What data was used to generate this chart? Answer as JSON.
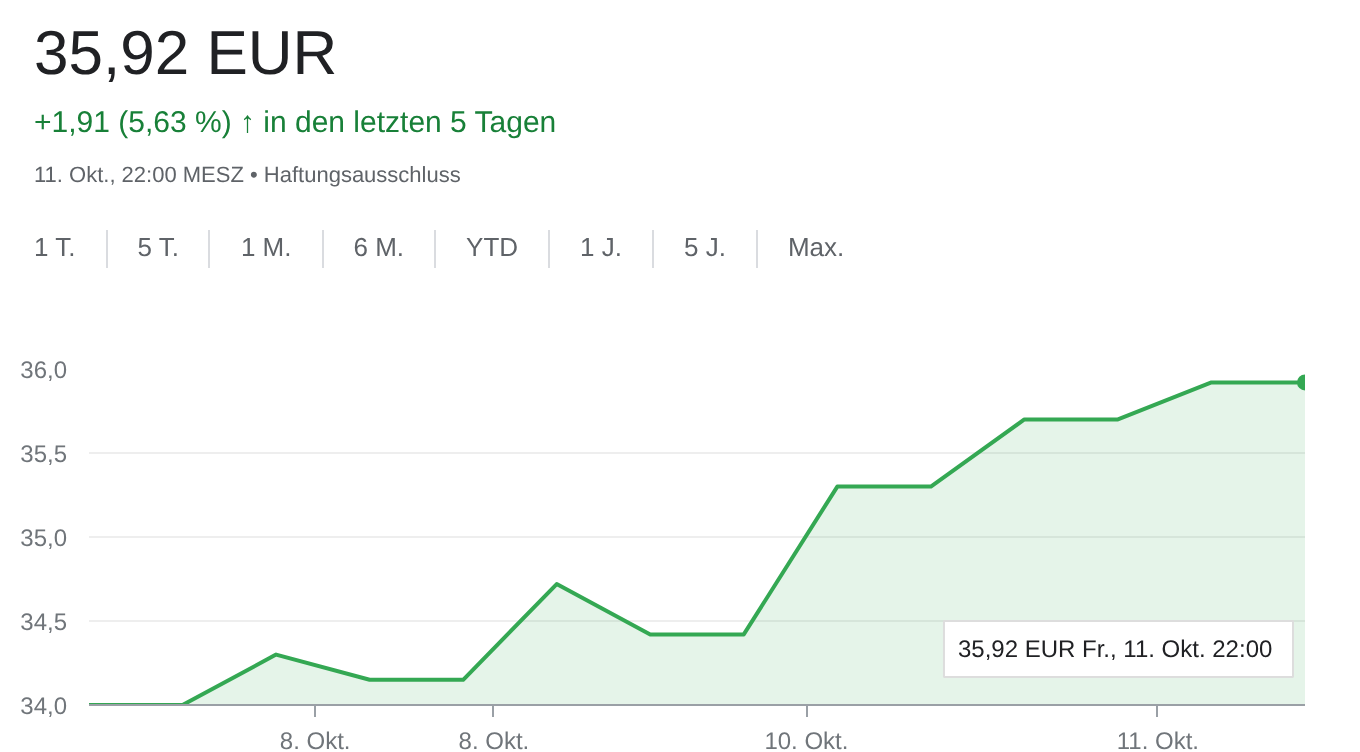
{
  "chart_data": {
    "type": "area",
    "title": "35,92 EUR",
    "subtitle": "+1,91 (5,63 %) ↑ in den letzten 5 Tagen",
    "annotations": [
      "11. Okt., 22:00 MESZ • Haftungsausschluss",
      "1 T.",
      "5 T.",
      "1 M.",
      "6 M.",
      "YTD",
      "1 J.",
      "5 J.",
      "Max.",
      "8. Okt.",
      "8. Okt.",
      "10. Okt.",
      "11. Okt.",
      "35,92 EUR  Fr., 11. Okt. 22:00"
    ],
    "categories": [
      null,
      null,
      null,
      null,
      null,
      null,
      null,
      null,
      null,
      null,
      null,
      null,
      null,
      null
    ],
    "series": [
      {
        "color": "#34a853",
        "values": [
          34.0,
          34.0,
          34.3,
          34.15,
          34.15,
          34.72,
          34.42,
          34.42,
          35.3,
          35.3,
          35.7,
          35.7,
          35.92,
          35.92
        ]
      }
    ],
    "ylim": [
      34.0,
      36.0
    ],
    "yticks": [
      {
        "value": 34.0,
        "label": "34,0"
      },
      {
        "value": 34.5,
        "label": "34,5"
      },
      {
        "value": 35.0,
        "label": "35,0"
      },
      {
        "value": 35.5,
        "label": "35,5"
      },
      {
        "value": 36.0,
        "label": "36,0"
      }
    ],
    "grid": "y",
    "marker": "none",
    "line_style": "solid"
  }
}
